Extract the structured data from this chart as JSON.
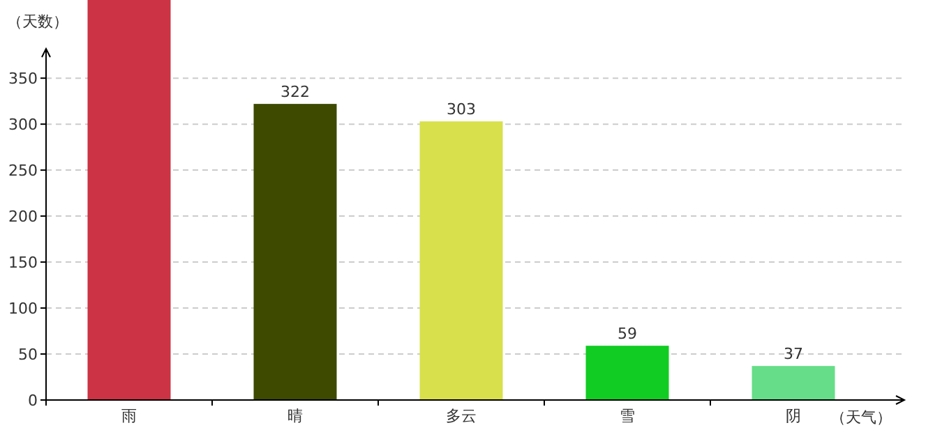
{
  "chart_data": {
    "type": "bar",
    "ylabel": "（天数）",
    "xlabel": "（天气）",
    "categories": [
      "雨",
      "晴",
      "多云",
      "雪",
      "阴"
    ],
    "values": [
      435,
      322,
      303,
      59,
      37
    ],
    "value_labels": [
      null,
      "322",
      "303",
      "59",
      "37"
    ],
    "colors": [
      "#cc3344",
      "#3d4a00",
      "#d8e04c",
      "#11cc22",
      "#66dd88"
    ],
    "ylim": [
      0,
      435
    ],
    "yticks": [
      0,
      50,
      100,
      150,
      200,
      250,
      300,
      350
    ],
    "grid": "y"
  }
}
